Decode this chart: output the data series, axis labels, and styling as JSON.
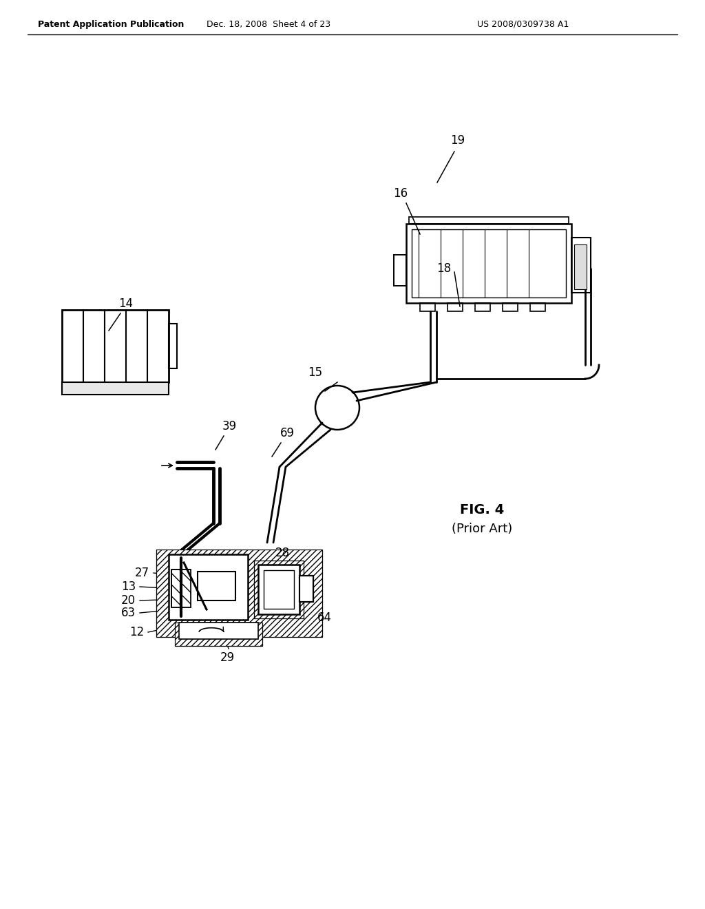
{
  "background_color": "#ffffff",
  "header_left": "Patent Application Publication",
  "header_center": "Dec. 18, 2008  Sheet 4 of 23",
  "header_right": "US 2008/0309738 A1",
  "fig_label": "FIG. 4",
  "fig_sublabel": "(Prior Art)"
}
